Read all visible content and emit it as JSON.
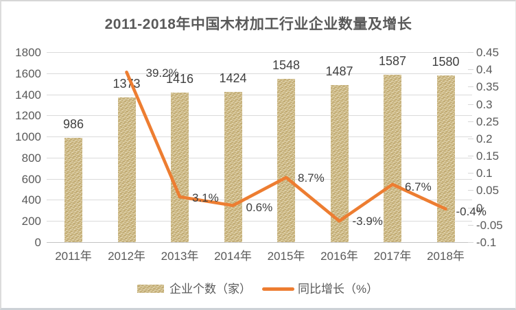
{
  "chart_data": {
    "type": "combo-bar-line",
    "title": "2011-2018年中国木材加工行业企业数量及增长",
    "categories": [
      "2011年",
      "2012年",
      "2013年",
      "2014年",
      "2015年",
      "2016年",
      "2017年",
      "2018年"
    ],
    "series": [
      {
        "name": "企业个数（家）",
        "type": "bar",
        "axis": "left",
        "values": [
          986,
          1373,
          1416,
          1424,
          1548,
          1487,
          1587,
          1580
        ],
        "labels": [
          "986",
          "1373",
          "1416",
          "1424",
          "1548",
          "1487",
          "1587",
          "1580"
        ]
      },
      {
        "name": "同比增长（%）",
        "type": "line",
        "axis": "right",
        "values": [
          null,
          0.392,
          0.031,
          0.006,
          0.087,
          -0.039,
          0.067,
          -0.004
        ],
        "labels": [
          "",
          "39.2%",
          "3.1%",
          "0.6%",
          "8.7%",
          "-3.9%",
          "6.7%",
          "-0.4%"
        ]
      }
    ],
    "left_axis": {
      "min": 0,
      "max": 1800,
      "step": 200,
      "ticks": [
        "1800",
        "1600",
        "1400",
        "1200",
        "1000",
        "800",
        "600",
        "400",
        "200",
        "0"
      ]
    },
    "right_axis": {
      "min": -0.1,
      "max": 0.45,
      "step": 0.05,
      "ticks": [
        "0.45",
        "0.4",
        "0.35",
        "0.3",
        "0.25",
        "0.2",
        "0.15",
        "0.1",
        "0.05",
        "0",
        "-0.05",
        "-0.1"
      ]
    },
    "grid": true,
    "legend_position": "bottom",
    "colors": {
      "bar_fill": "#d5c18b",
      "line": "#ED7D31",
      "grid_line": "#dadada",
      "axis_line": "#c3c3c3",
      "axis_text": "#595959",
      "data_label_text": "#3f3f3f",
      "title_text": "#595959"
    }
  }
}
